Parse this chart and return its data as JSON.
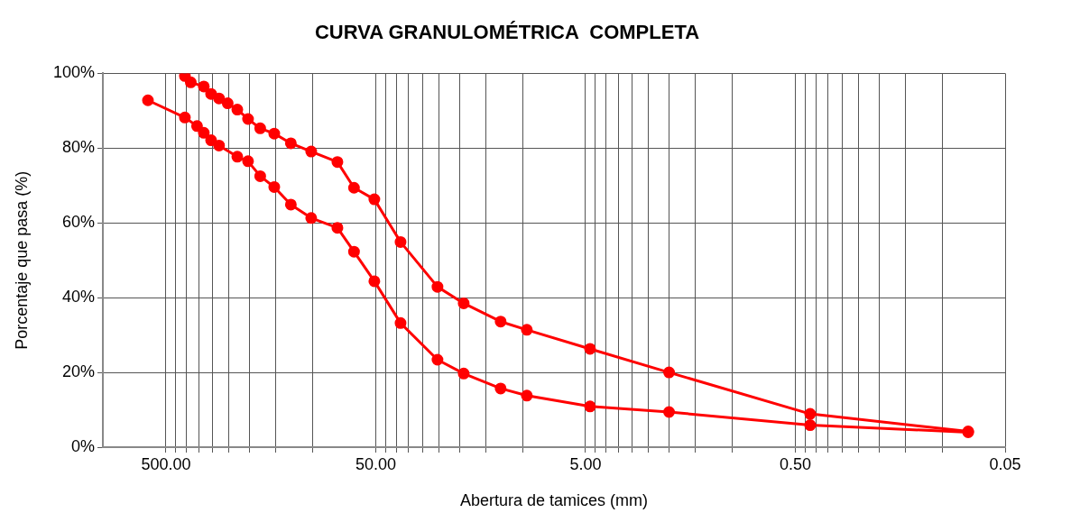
{
  "chart_data": {
    "type": "line",
    "title": "CURVA GRANULOMÉTRICA  COMPLETA",
    "xlabel": "Abertura de tamices (mm)",
    "ylabel": "Porcentaje que pasa (%)",
    "log": "x",
    "grid": true,
    "legend": false,
    "marker": "circle",
    "line_style": "solid",
    "xlim": [
      1000,
      0.05
    ],
    "xticks": [
      {
        "value": 500,
        "label": "500.00"
      },
      {
        "value": 450,
        "label": null
      },
      {
        "value": 400,
        "label": null
      },
      {
        "value": 350,
        "label": null
      },
      {
        "value": 300,
        "label": null
      },
      {
        "value": 250,
        "label": null
      },
      {
        "value": 200,
        "label": null
      },
      {
        "value": 150,
        "label": null
      },
      {
        "value": 100,
        "label": null
      },
      {
        "value": 50,
        "label": "50.00"
      },
      {
        "value": 45,
        "label": null
      },
      {
        "value": 40,
        "label": null
      },
      {
        "value": 35,
        "label": null
      },
      {
        "value": 30,
        "label": null
      },
      {
        "value": 25,
        "label": null
      },
      {
        "value": 20,
        "label": null
      },
      {
        "value": 15,
        "label": null
      },
      {
        "value": 10,
        "label": null
      },
      {
        "value": 5,
        "label": "5.00"
      },
      {
        "value": 4.5,
        "label": null
      },
      {
        "value": 4,
        "label": null
      },
      {
        "value": 3.5,
        "label": null
      },
      {
        "value": 3,
        "label": null
      },
      {
        "value": 2.5,
        "label": null
      },
      {
        "value": 2,
        "label": null
      },
      {
        "value": 1.5,
        "label": null
      },
      {
        "value": 1,
        "label": null
      },
      {
        "value": 0.5,
        "label": "0.50"
      },
      {
        "value": 0.45,
        "label": null
      },
      {
        "value": 0.4,
        "label": null
      },
      {
        "value": 0.35,
        "label": null
      },
      {
        "value": 0.3,
        "label": null
      },
      {
        "value": 0.25,
        "label": null
      },
      {
        "value": 0.2,
        "label": null
      },
      {
        "value": 0.15,
        "label": null
      },
      {
        "value": 0.1,
        "label": null
      },
      {
        "value": 0.05,
        "label": "0.05"
      }
    ],
    "ylim": [
      0,
      100
    ],
    "yticks": [
      {
        "value": 0,
        "label": "0%"
      },
      {
        "value": 20,
        "label": "20%"
      },
      {
        "value": 40,
        "label": "40%"
      },
      {
        "value": 60,
        "label": "60%"
      },
      {
        "value": 80,
        "label": "80%"
      },
      {
        "value": 100,
        "label": "100%"
      }
    ],
    "series": [
      {
        "color": "#ff0000",
        "x": [
          406.4,
          381,
          330.2,
          304.8,
          279.4,
          254,
          228.6,
          203.2,
          177.8,
          152.4,
          127,
          101.6,
          76.2,
          63.5,
          50.8,
          38.1,
          25.4,
          19.05,
          12.7,
          9.525,
          4.76,
          2,
          0.425,
          0.075
        ],
        "values": [
          99.3,
          97.6,
          96.5,
          94.5,
          93.3,
          92,
          90.3,
          87.8,
          85.3,
          83.9,
          81.3,
          79.1,
          76.3,
          69.4,
          66.3,
          54.9,
          42.9,
          38.5,
          33.6,
          31.4,
          26.3,
          20,
          8.9,
          4.2
        ]
      },
      {
        "color": "#ff0000",
        "x": [
          609.6,
          406.4,
          355.6,
          330.2,
          304.8,
          279.4,
          228.6,
          203.2,
          177.8,
          152.4,
          127,
          101.6,
          76.2,
          63.5,
          50.8,
          38.1,
          25.4,
          19.05,
          12.7,
          9.525,
          4.76,
          2,
          0.425,
          0.075
        ],
        "values": [
          92.8,
          88.2,
          85.9,
          84.1,
          82.1,
          80.7,
          77.7,
          76.5,
          72.5,
          69.6,
          64.9,
          61.3,
          58.7,
          52.3,
          44.4,
          33.2,
          23.4,
          19.7,
          15.7,
          13.8,
          10.9,
          9.4,
          5.9,
          4
        ]
      }
    ]
  }
}
